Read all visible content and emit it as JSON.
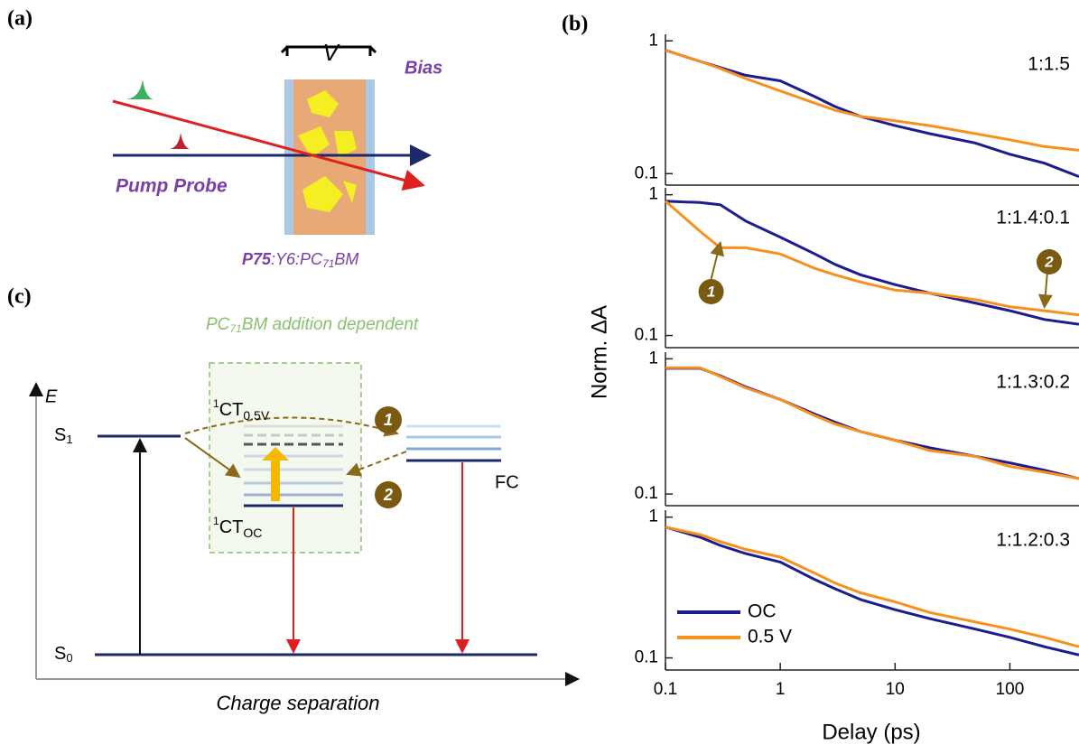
{
  "panel_a": {
    "label": "(a)",
    "bias_symbol": "V",
    "bias": "Bias",
    "pump_probe": "Pump Probe",
    "sample": [
      "P75",
      ":Y6:PC",
      "71",
      "BM"
    ]
  },
  "panel_b": {
    "label": "(b)",
    "xlabel": "Delay (ps)",
    "ylabel": "Norm. ΔA"
  },
  "panel_c": {
    "label": "(c)",
    "note": [
      "PC",
      "71",
      "BM addition dependent"
    ],
    "energy_axis": "E",
    "s1": [
      "S",
      "1"
    ],
    "s0": [
      "S",
      "0"
    ],
    "ct_biased": [
      "1",
      "CT",
      "0.5V"
    ],
    "ct_oc": [
      "1",
      "CT",
      "OC"
    ],
    "fc": "FC",
    "pathway_1": "1",
    "pathway_2": "2",
    "xlabel": "Charge separation"
  },
  "chart_data": [
    {
      "type": "line",
      "title": "1:1.5",
      "log_x": true,
      "log_y": true,
      "x": [
        0.1,
        0.2,
        0.3,
        0.5,
        1,
        2,
        3,
        5,
        10,
        20,
        50,
        100,
        200,
        400
      ],
      "xlim": [
        0.1,
        400
      ],
      "ylim": [
        0.082,
        1.12
      ],
      "yticks": [
        0.1,
        1
      ],
      "series": [
        {
          "color": "#1c1c8f",
          "values": [
            0.85,
            0.7,
            0.63,
            0.55,
            0.5,
            0.38,
            0.32,
            0.27,
            0.23,
            0.2,
            0.17,
            0.14,
            0.12,
            0.095
          ]
        },
        {
          "color": "#f7901e",
          "values": [
            0.85,
            0.7,
            0.62,
            0.52,
            0.42,
            0.34,
            0.3,
            0.27,
            0.25,
            0.23,
            0.2,
            0.18,
            0.16,
            0.15
          ]
        }
      ]
    },
    {
      "type": "line",
      "title": "1:1.4:0.1",
      "log_x": true,
      "log_y": true,
      "x": [
        0.1,
        0.2,
        0.3,
        0.5,
        1,
        2,
        3,
        5,
        10,
        20,
        50,
        100,
        200,
        400
      ],
      "xlim": [
        0.1,
        400
      ],
      "ylim": [
        0.082,
        1.12
      ],
      "yticks": [
        0.1,
        1
      ],
      "annotations": [
        "1",
        "2"
      ],
      "series": [
        {
          "color": "#1c1c8f",
          "values": [
            0.9,
            0.88,
            0.85,
            0.65,
            0.5,
            0.38,
            0.32,
            0.27,
            0.23,
            0.2,
            0.17,
            0.15,
            0.13,
            0.12
          ]
        },
        {
          "color": "#f7901e",
          "values": [
            0.9,
            0.55,
            0.42,
            0.42,
            0.38,
            0.3,
            0.27,
            0.24,
            0.21,
            0.2,
            0.18,
            0.16,
            0.15,
            0.14
          ]
        }
      ]
    },
    {
      "type": "line",
      "title": "1:1.3:0.2",
      "log_x": true,
      "log_y": true,
      "x": [
        0.1,
        0.2,
        0.3,
        0.5,
        1,
        2,
        3,
        5,
        10,
        20,
        50,
        100,
        200,
        400
      ],
      "xlim": [
        0.1,
        400
      ],
      "ylim": [
        0.082,
        1.12
      ],
      "yticks": [
        0.1,
        1
      ],
      "series": [
        {
          "color": "#1c1c8f",
          "values": [
            0.85,
            0.85,
            0.75,
            0.62,
            0.5,
            0.39,
            0.34,
            0.29,
            0.25,
            0.22,
            0.19,
            0.17,
            0.15,
            0.13
          ]
        },
        {
          "color": "#f7901e",
          "values": [
            0.86,
            0.86,
            0.74,
            0.61,
            0.5,
            0.38,
            0.33,
            0.29,
            0.25,
            0.21,
            0.19,
            0.16,
            0.145,
            0.13
          ]
        }
      ]
    },
    {
      "type": "line",
      "title": "1:1.2:0.3",
      "log_x": true,
      "log_y": true,
      "x": [
        0.1,
        0.2,
        0.3,
        0.5,
        1,
        2,
        3,
        5,
        10,
        20,
        50,
        100,
        200,
        400
      ],
      "xlim": [
        0.1,
        400
      ],
      "ylim": [
        0.082,
        1.12
      ],
      "yticks": [
        0.1,
        1
      ],
      "xticks": [
        0.1,
        1,
        10,
        100
      ],
      "legend": "lower left",
      "series": [
        {
          "name": "OC",
          "color": "#1c1c8f",
          "values": [
            0.85,
            0.72,
            0.63,
            0.55,
            0.48,
            0.36,
            0.31,
            0.26,
            0.22,
            0.19,
            0.16,
            0.14,
            0.12,
            0.105
          ]
        },
        {
          "name": "0.5 V",
          "color": "#f7901e",
          "values": [
            0.85,
            0.75,
            0.67,
            0.59,
            0.52,
            0.4,
            0.34,
            0.29,
            0.25,
            0.21,
            0.18,
            0.16,
            0.14,
            0.12
          ]
        }
      ]
    }
  ]
}
